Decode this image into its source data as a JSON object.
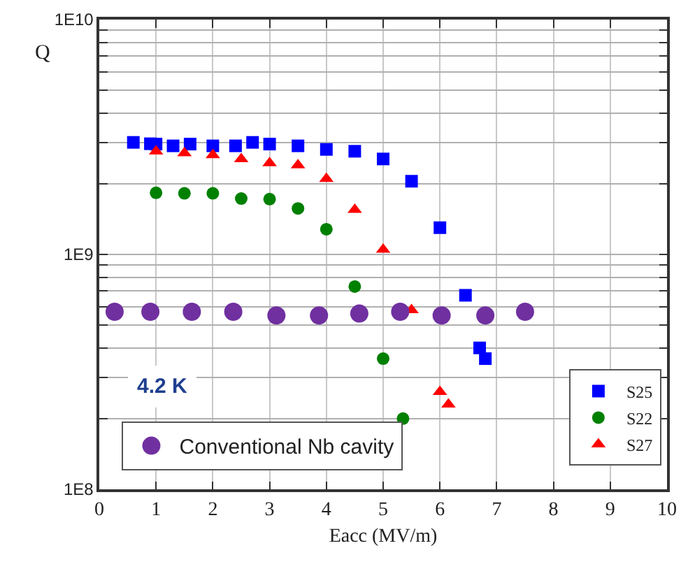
{
  "chart_data": {
    "type": "scatter",
    "xlabel": "Eacc (MV/m)",
    "ylabel": "Q",
    "log": "y",
    "xlim": [
      0,
      10
    ],
    "xticks": [
      0,
      1,
      2,
      3,
      4,
      5,
      6,
      7,
      8,
      9,
      10
    ],
    "ylim": [
      100000000,
      10000000000
    ],
    "yticks": [
      {
        "value": 100000000,
        "label": "1E8"
      },
      {
        "value": 200000000,
        "label": null
      },
      {
        "value": 300000000,
        "label": null
      },
      {
        "value": 400000000,
        "label": null
      },
      {
        "value": 500000000,
        "label": null
      },
      {
        "value": 600000000,
        "label": null
      },
      {
        "value": 700000000,
        "label": null
      },
      {
        "value": 800000000,
        "label": null
      },
      {
        "value": 900000000,
        "label": null
      },
      {
        "value": 1000000000,
        "label": "1E9"
      },
      {
        "value": 2000000000,
        "label": null
      },
      {
        "value": 3000000000,
        "label": null
      },
      {
        "value": 4000000000,
        "label": null
      },
      {
        "value": 5000000000,
        "label": null
      },
      {
        "value": 6000000000,
        "label": null
      },
      {
        "value": 7000000000,
        "label": null
      },
      {
        "value": 8000000000,
        "label": null
      },
      {
        "value": 9000000000,
        "label": null
      },
      {
        "value": 10000000000,
        "label": "1E10"
      }
    ],
    "grid": true,
    "legend": "bottom right",
    "annotations": [
      "4.2 K"
    ],
    "series": [
      {
        "name": "S25",
        "color": "#0000ff",
        "marker": "square",
        "x": [
          0.6,
          0.9,
          1.0,
          1.3,
          1.6,
          2.0,
          2.4,
          2.7,
          3.0,
          3.5,
          4.0,
          4.5,
          5.0,
          5.5,
          6.0,
          6.45,
          6.7,
          6.8
        ],
        "values": [
          3000000000.0,
          2960000000.0,
          2950000000.0,
          2900000000.0,
          2950000000.0,
          2900000000.0,
          2900000000.0,
          3000000000.0,
          2950000000.0,
          2900000000.0,
          2800000000.0,
          2750000000.0,
          2550000000.0,
          2050000000.0,
          1300000000.0,
          670000000.0,
          400000000.0,
          360000000.0
        ]
      },
      {
        "name": "S22",
        "color": "#008000",
        "marker": "circle",
        "x": [
          1.0,
          1.5,
          2.0,
          2.5,
          3.0,
          3.5,
          4.0,
          4.5,
          5.0,
          5.35
        ],
        "values": [
          1830000000.0,
          1820000000.0,
          1820000000.0,
          1730000000.0,
          1720000000.0,
          1570000000.0,
          1280000000.0,
          730000000.0,
          360000000.0,
          200000000.0
        ]
      },
      {
        "name": "S27",
        "color": "#ff0000",
        "marker": "triangle",
        "x": [
          1.0,
          1.5,
          2.0,
          2.5,
          3.0,
          3.5,
          4.0,
          4.5,
          5.0,
          5.5,
          6.0,
          6.15
        ],
        "values": [
          2750000000.0,
          2700000000.0,
          2650000000.0,
          2550000000.0,
          2450000000.0,
          2400000000.0,
          2100000000.0,
          1550000000.0,
          1050000000.0,
          580000000.0,
          260000000.0,
          230000000.0
        ]
      },
      {
        "name": "Conventional Nb cavity",
        "color": "#7030a0",
        "marker": "circle",
        "x": [
          0.27,
          0.9,
          1.63,
          2.36,
          3.12,
          3.87,
          4.58,
          5.3,
          6.03,
          6.8,
          7.5
        ],
        "values": [
          570000000.0,
          570000000.0,
          570000000.0,
          570000000.0,
          550000000.0,
          550000000.0,
          560000000.0,
          570000000.0,
          550000000.0,
          550000000.0,
          570000000.0
        ]
      }
    ]
  }
}
